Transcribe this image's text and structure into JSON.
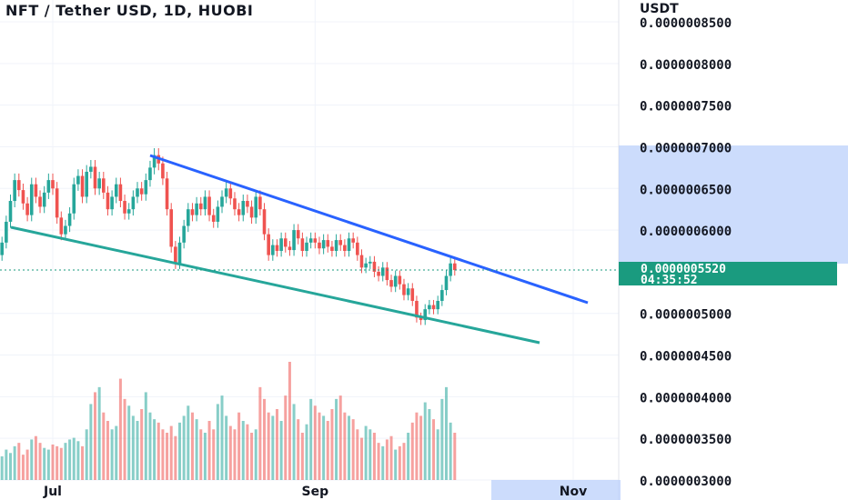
{
  "header": {
    "title": "NFT / Tether USD, 1D, HUOBI",
    "unit": "USDT"
  },
  "price_badge": {
    "price": "0.0000005520",
    "countdown": "04:35:52"
  },
  "colors": {
    "up": "#26a69a",
    "down": "#ef5350",
    "upper_trendline": "#2962ff",
    "lower_trendline": "#26a69a",
    "highlight": "#bbd0fb",
    "badge": "#1a9b7f"
  },
  "chart_data": {
    "type": "candlestick",
    "ylim": [
      3e-07,
      8.5e-07
    ],
    "yticks": [
      "0.0000008500",
      "0.0000008000",
      "0.0000007500",
      "0.0000007000",
      "0.0000006500",
      "0.0000006000",
      "0.0000005000",
      "0.0000004500",
      "0.0000004000",
      "0.0000003500",
      "0.0000003000"
    ],
    "xticks": [
      {
        "label": "Jul",
        "date": "2023-07-01"
      },
      {
        "label": "Sep",
        "date": "2023-09-01"
      },
      {
        "label": "Nov",
        "date": "2023-11-01"
      }
    ],
    "last_price": 5.52e-07,
    "candles_start": "2023-06-18",
    "closes": [
      5.7e-07,
      5.85e-07,
      6.1e-07,
      6.35e-07,
      6.6e-07,
      6.48e-07,
      6.32e-07,
      6.18e-07,
      6.55e-07,
      6.4e-07,
      6.28e-07,
      6.45e-07,
      6.6e-07,
      6.5e-07,
      6.15e-07,
      5.95e-07,
      6.05e-07,
      6.2e-07,
      6.55e-07,
      6.65e-07,
      6.4e-07,
      6.7e-07,
      6.76e-07,
      6.5e-07,
      6.62e-07,
      6.45e-07,
      6.25e-07,
      6.4e-07,
      6.55e-07,
      6.35e-07,
      6.2e-07,
      6.25e-07,
      6.4e-07,
      6.5e-07,
      6.43e-07,
      6.6e-07,
      6.75e-07,
      6.9e-07,
      6.8e-07,
      6.62e-07,
      6.25e-07,
      5.8e-07,
      5.6e-07,
      5.85e-07,
      6.05e-07,
      6.25e-07,
      6.18e-07,
      6.32e-07,
      6.25e-07,
      6.4e-07,
      6.18e-07,
      6.1e-07,
      6.28e-07,
      6.4e-07,
      6.5e-07,
      6.38e-07,
      6.25e-07,
      6.18e-07,
      6.35e-07,
      6.28e-07,
      6.15e-07,
      6.4e-07,
      6.25e-07,
      5.95e-07,
      5.7e-07,
      5.82e-07,
      5.75e-07,
      5.9e-07,
      5.8e-07,
      5.76e-07,
      6e-07,
      5.9e-07,
      5.75e-07,
      5.85e-07,
      5.9e-07,
      5.85e-07,
      5.78e-07,
      5.88e-07,
      5.8e-07,
      5.75e-07,
      5.88e-07,
      5.82e-07,
      5.75e-07,
      5.9e-07,
      5.85e-07,
      5.7e-07,
      5.55e-07,
      5.6e-07,
      5.62e-07,
      5.5e-07,
      5.45e-07,
      5.55e-07,
      5.4e-07,
      5.32e-07,
      5.45e-07,
      5.35e-07,
      5.22e-07,
      5.3e-07,
      5.15e-07,
      4.95e-07,
      4.92e-07,
      5.05e-07,
      5.1e-07,
      5.05e-07,
      5.15e-07,
      5.28e-07,
      5.45e-07,
      5.6e-07,
      5.52e-07
    ],
    "volume": [
      12,
      14,
      18,
      16,
      20,
      22,
      15,
      18,
      24,
      26,
      22,
      19,
      18,
      21,
      20,
      19,
      22,
      24,
      25,
      23,
      20,
      30,
      45,
      52,
      55,
      40,
      35,
      30,
      32,
      60,
      48,
      44,
      38,
      35,
      42,
      52,
      40,
      36,
      34,
      30,
      28,
      32,
      26,
      34,
      38,
      44,
      40,
      36,
      30,
      28,
      35,
      30,
      45,
      50,
      38,
      32,
      30,
      40,
      35,
      33,
      28,
      30,
      55,
      48,
      40,
      38,
      42,
      35,
      50,
      70,
      45,
      36,
      28,
      33,
      48,
      44,
      40,
      38,
      35,
      42,
      48,
      50,
      40,
      38,
      36,
      30,
      25,
      32,
      30,
      28,
      22,
      20,
      24,
      26,
      18,
      20,
      22,
      28,
      34,
      40,
      38,
      46,
      42,
      36,
      30,
      48,
      55,
      34,
      28
    ]
  }
}
